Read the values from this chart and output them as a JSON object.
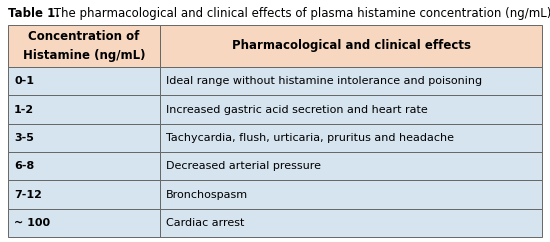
{
  "title_bold": "Table 1.",
  "title_normal": " The pharmacological and clinical effects of plasma histamine concentration (ng/mL).",
  "col1_header": "Concentration of\nHistamine (ng/mL)",
  "col2_header": "Pharmacological and clinical effects",
  "rows": [
    [
      "0-1",
      "Ideal range without histamine intolerance and poisoning"
    ],
    [
      "1-2",
      "Increased gastric acid secretion and heart rate"
    ],
    [
      "3-5",
      "Tachycardia, flush, urticaria, pruritus and headache"
    ],
    [
      "6-8",
      "Decreased arterial pressure"
    ],
    [
      "7-12",
      "Bronchospasm"
    ],
    [
      "~ 100",
      "Cardiac arrest"
    ]
  ],
  "header_bg": "#FADADC",
  "row_bg": "#D6E4F0",
  "border_color": "#666666",
  "header_font_size": 8.5,
  "row_font_size": 8.0,
  "title_font_size": 8.5,
  "fig_width": 5.5,
  "fig_height": 2.42,
  "dpi": 100
}
